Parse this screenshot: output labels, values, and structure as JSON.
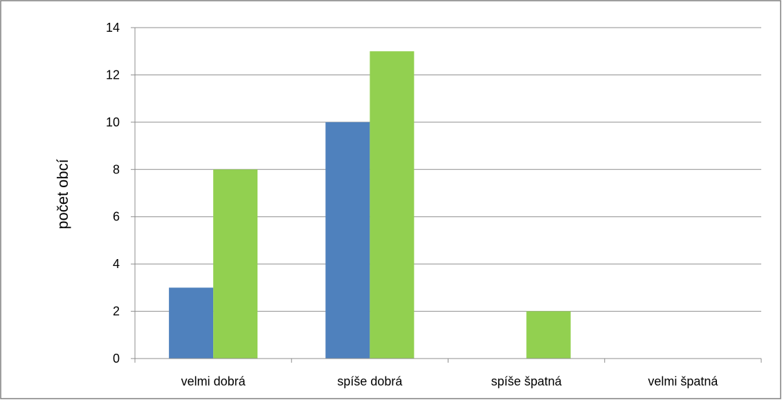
{
  "chart_data": {
    "type": "bar",
    "title": "",
    "xlabel": "",
    "ylabel": "počet obcí",
    "categories": [
      "velmi dobrá",
      "spíše dobrá",
      "spíše špatná",
      "velmi špatná"
    ],
    "series": [
      {
        "values": [
          3,
          10,
          0,
          0
        ],
        "color": "#4f81bd"
      },
      {
        "values": [
          8,
          13,
          2,
          0
        ],
        "color": "#92d050"
      }
    ],
    "ylim": [
      0,
      14
    ],
    "yticks": [
      "0",
      "2",
      "4",
      "6",
      "8",
      "10",
      "12",
      "14"
    ],
    "grid": true,
    "legend": "none",
    "colors": {
      "gridline": "#8c8c8c",
      "axis": "#8c8c8c",
      "frame": "#7f7f7f",
      "text": "#000000"
    }
  }
}
